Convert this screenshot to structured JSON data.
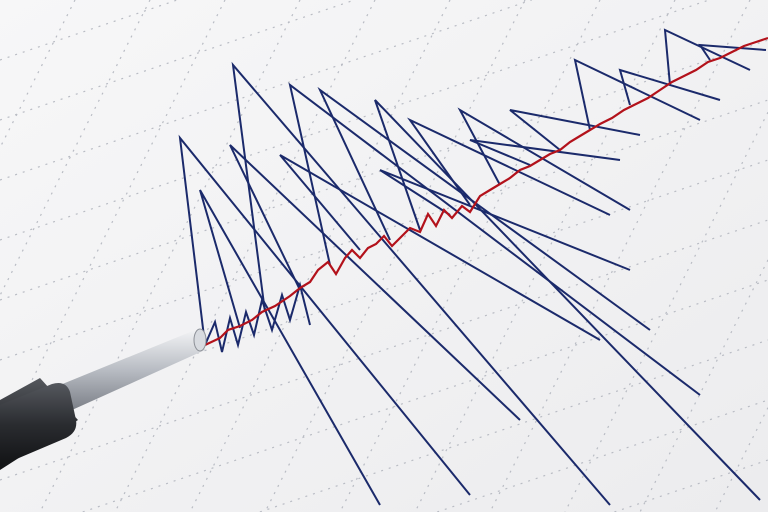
{
  "scene": {
    "subject": "seismograph",
    "colors": {
      "paper": "#f4f4f5",
      "grid": "#b9bcc4",
      "trace_primary": "#1b2a6b",
      "trace_secondary": "#b3121b",
      "stylus_body": "#2a2c30",
      "stylus_tip": "#c9ccd1"
    }
  }
}
